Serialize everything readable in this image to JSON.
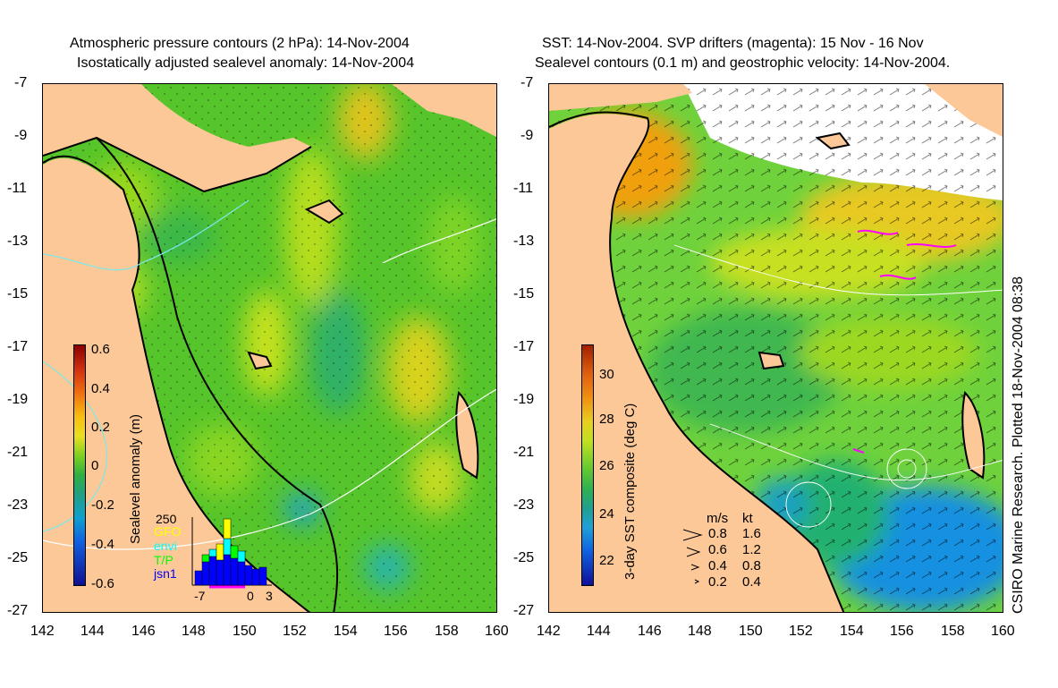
{
  "left_panel": {
    "title_line1": "Atmospheric pressure contours (2 hPa): 14-Nov-2004",
    "title_line2": "Isostatically adjusted sealevel anomaly: 14-Nov-2004",
    "colorbar_label": "Sealevel anomaly (m)",
    "colorbar_ticks": [
      "0.6",
      "0.4",
      "0.2",
      "0",
      "-0.2",
      "-0.4",
      "-0.6"
    ],
    "histogram": {
      "ymax_label": "250",
      "x_ticks": [
        "-7",
        "0",
        "3"
      ],
      "satellites": [
        {
          "name": "GFO",
          "color": "#ffff00"
        },
        {
          "name": "envi",
          "color": "#00ffff"
        },
        {
          "name": "T/P",
          "color": "#00ff00"
        },
        {
          "name": "jsn1",
          "color": "#0000ff"
        }
      ]
    }
  },
  "right_panel": {
    "title_line1": "SST: 14-Nov-2004. SVP drifters (magenta): 15 Nov - 16 Nov",
    "title_line2": "Sealevel contours (0.1 m) and geostrophic velocity: 14-Nov-2004.",
    "colorbar_label": "3-day SST composite (deg C)",
    "colorbar_ticks": [
      "30",
      "28",
      "26",
      "24",
      "22"
    ],
    "velocity_legend": {
      "header_ms": "m/s",
      "header_kt": "kt",
      "rows": [
        {
          "ms": "0.8",
          "kt": "1.6"
        },
        {
          "ms": "0.6",
          "kt": "1.2"
        },
        {
          "ms": "0.4",
          "kt": "0.8"
        },
        {
          "ms": "0.2",
          "kt": "0.4"
        }
      ]
    }
  },
  "axes": {
    "y_ticks": [
      "-7",
      "-9",
      "-11",
      "-13",
      "-15",
      "-17",
      "-19",
      "-21",
      "-23",
      "-25",
      "-27"
    ],
    "x_ticks": [
      "142",
      "144",
      "146",
      "148",
      "150",
      "152",
      "154",
      "156",
      "158",
      "160"
    ]
  },
  "credit": "CSIRO Marine Research. Plotted 18-Nov-2004 08:38",
  "colors": {
    "land": "#fcc898",
    "sla_mid": "#5ac828",
    "sst_mid": "#6fd23c",
    "no_data": "#ffffff",
    "drifter": "#ff00ff"
  }
}
